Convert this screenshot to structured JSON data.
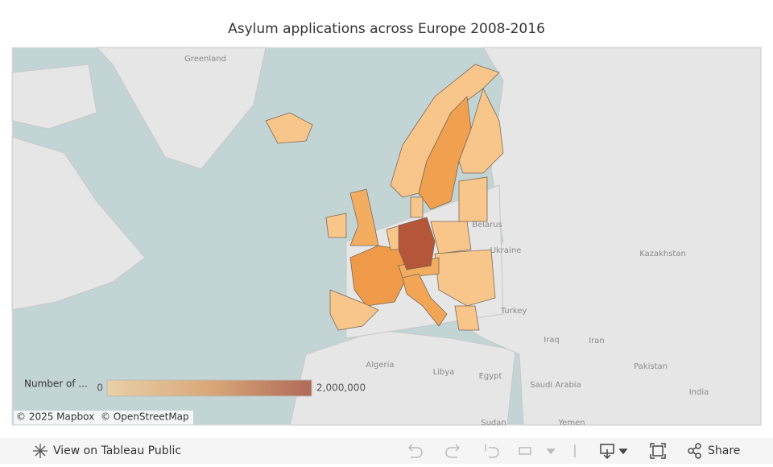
{
  "header": {
    "title": "Asylum applications across Europe 2008-2016"
  },
  "map": {
    "labels": [
      "Greenland",
      "Belarus",
      "Ukraine",
      "Kazakhstan",
      "Turkey",
      "Iraq",
      "Iran",
      "Algeria",
      "Libya",
      "Egypt",
      "Saudi Arabia",
      "Pakistan",
      "India",
      "Sudan",
      "Yemen"
    ],
    "attribution": [
      "© 2025 Mapbox",
      "© OpenStreetMap"
    ]
  },
  "legend": {
    "title": "Number of ...",
    "min": 0,
    "max": {
      "value": 2000000,
      "label": "2,000,000"
    },
    "colors": [
      "#e9cfa6",
      "#d9a87a",
      "#b06a58"
    ]
  },
  "toolbar": {
    "view": "View on Tableau Public",
    "share": "Share"
  }
}
